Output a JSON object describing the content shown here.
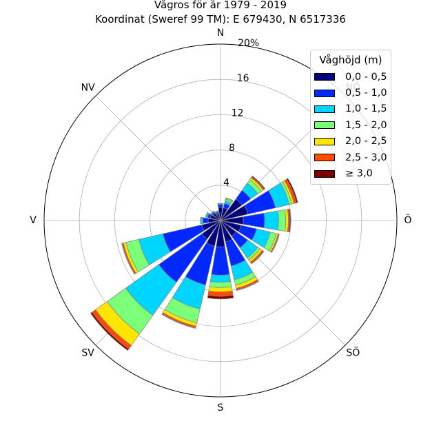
{
  "chart_data": {
    "type": "windrose",
    "title": "Vågros för år 1979 - 2019",
    "subtitle": "Koordinat (Sweref 99 TM): E 679430, N 6517336",
    "direction_labels": [
      "N",
      "NV",
      "V",
      "SV",
      "S",
      "SÖ",
      "Ö",
      "NÖ"
    ],
    "radial_ticks": [
      4,
      8,
      12,
      16,
      20
    ],
    "radial_tick_labels": [
      "4",
      "8",
      "12",
      "16",
      "20%"
    ],
    "rlim": [
      0,
      20
    ],
    "grid": true,
    "legend_position": "top-right",
    "legend": {
      "title": "Våghöjd (m)",
      "items": [
        {
          "label": "0,0 - 0,5",
          "color": "#00007f"
        },
        {
          "label": "0,5 - 1,0",
          "color": "#0028ff"
        },
        {
          "label": "1,0 - 1,5",
          "color": "#00d5ff"
        },
        {
          "label": "1,5 - 2,0",
          "color": "#7cff79"
        },
        {
          "label": "2,0 - 2,5",
          "color": "#ffe600"
        },
        {
          "label": "2,5 - 3,0",
          "color": "#ff4a00"
        },
        {
          "label": "≥ 3,0",
          "color": "#7f0000"
        }
      ]
    },
    "direction_bins_deg": [
      0,
      22.5,
      45,
      67.5,
      90,
      112.5,
      135,
      157.5,
      180,
      202.5,
      225,
      247.5,
      270,
      292.5,
      315,
      337.5
    ],
    "series": [
      {
        "name": "0,0 - 0,5",
        "values": [
          1.5,
          1.5,
          3.0,
          3.2,
          2.6,
          2.4,
          2.2,
          2.5,
          3.0,
          3.0,
          2.6,
          2.2,
          1.4,
          1.2,
          1.0,
          0.8
        ]
      },
      {
        "name": "0,5 - 1,0",
        "values": [
          0.3,
          0.5,
          1.2,
          3.2,
          2.4,
          1.8,
          1.6,
          2.8,
          3.2,
          4.5,
          6.0,
          4.5,
          0.6,
          0.3,
          0.2,
          0.2
        ]
      },
      {
        "name": "1,0 - 1,5",
        "values": [
          0.1,
          0.3,
          1.0,
          1.6,
          1.6,
          1.6,
          1.4,
          1.6,
          0.8,
          2.8,
          4.6,
          2.8,
          0.2,
          0.2,
          0.1,
          0.1
        ]
      },
      {
        "name": "1,5 - 2,0",
        "values": [
          0.05,
          0.2,
          0.5,
          0.3,
          0.8,
          0.7,
          0.3,
          0.6,
          0.6,
          1.6,
          2.6,
          1.5,
          0.1,
          0.05,
          0.05,
          0.05
        ]
      },
      {
        "name": "2,0 - 2,5",
        "values": [
          0.0,
          0.1,
          0.25,
          0.25,
          0.3,
          0.2,
          0.3,
          0.4,
          0.5,
          0.4,
          1.6,
          0.3,
          0.0,
          0.0,
          0.0,
          0.0
        ]
      },
      {
        "name": "2,5 - 3,0",
        "values": [
          0.0,
          0.05,
          0.15,
          0.3,
          0.15,
          0.1,
          0.2,
          0.2,
          0.5,
          0.2,
          0.5,
          0.15,
          0.0,
          0.0,
          0.0,
          0.0
        ]
      },
      {
        "name": "≥ 3,0",
        "values": [
          0.0,
          0.0,
          0.1,
          0.15,
          0.1,
          0.05,
          0.05,
          0.05,
          0.3,
          0.05,
          0.2,
          0.05,
          0.0,
          0.0,
          0.0,
          0.0
        ]
      }
    ]
  }
}
